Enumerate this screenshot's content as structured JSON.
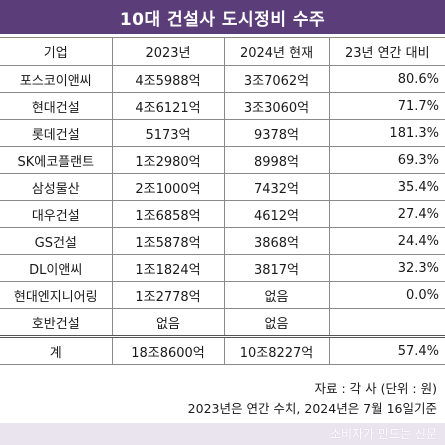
{
  "title": "10대 건설사 도시정비 수주",
  "headers": [
    "기업",
    "2023년",
    "2024년 현재",
    "23년 연간 대비"
  ],
  "rows": [
    {
      "company": "포스코이앤씨",
      "y2023": "4조5988억",
      "y2024": "3조7062억",
      "ratio": "80.6%"
    },
    {
      "company": "현대건설",
      "y2023": "4조6121억",
      "y2024": "3조3060억",
      "ratio": "71.7%"
    },
    {
      "company": "롯데건설",
      "y2023": "5173억",
      "y2024": "9378억",
      "ratio": "181.3%"
    },
    {
      "company": "SK에코플랜트",
      "y2023": "1조2980억",
      "y2024": "8998억",
      "ratio": "69.3%"
    },
    {
      "company": "삼성물산",
      "y2023": "2조1000억",
      "y2024": "7432억",
      "ratio": "35.4%"
    },
    {
      "company": "대우건설",
      "y2023": "1조6858억",
      "y2024": "4612억",
      "ratio": "27.4%"
    },
    {
      "company": "GS건설",
      "y2023": "1조5878억",
      "y2024": "3868억",
      "ratio": "24.4%"
    },
    {
      "company": "DL이앤씨",
      "y2023": "1조1824억",
      "y2024": "3817억",
      "ratio": "32.3%"
    },
    {
      "company": "현대엔지니어링",
      "y2023": "1조2778억",
      "y2024": "없음",
      "ratio": "0.0%"
    },
    {
      "company": "호반건설",
      "y2023": "없음",
      "y2024": "없음",
      "ratio": ""
    }
  ],
  "total": {
    "company": "계",
    "y2023": "18조8600억",
    "y2024": "10조8227억",
    "ratio": "57.4%"
  },
  "notes": {
    "source": "자료 : 각 사 (단위 : 원)",
    "basis": "2023년은 연간 수치, 2024년은 7월 16일기준"
  },
  "watermark": "소비자가 만드는 신문",
  "colors": {
    "title_bg": "#5b3d7a",
    "title_text": "#ffffff",
    "footer_bg": "#e9e4ee"
  }
}
